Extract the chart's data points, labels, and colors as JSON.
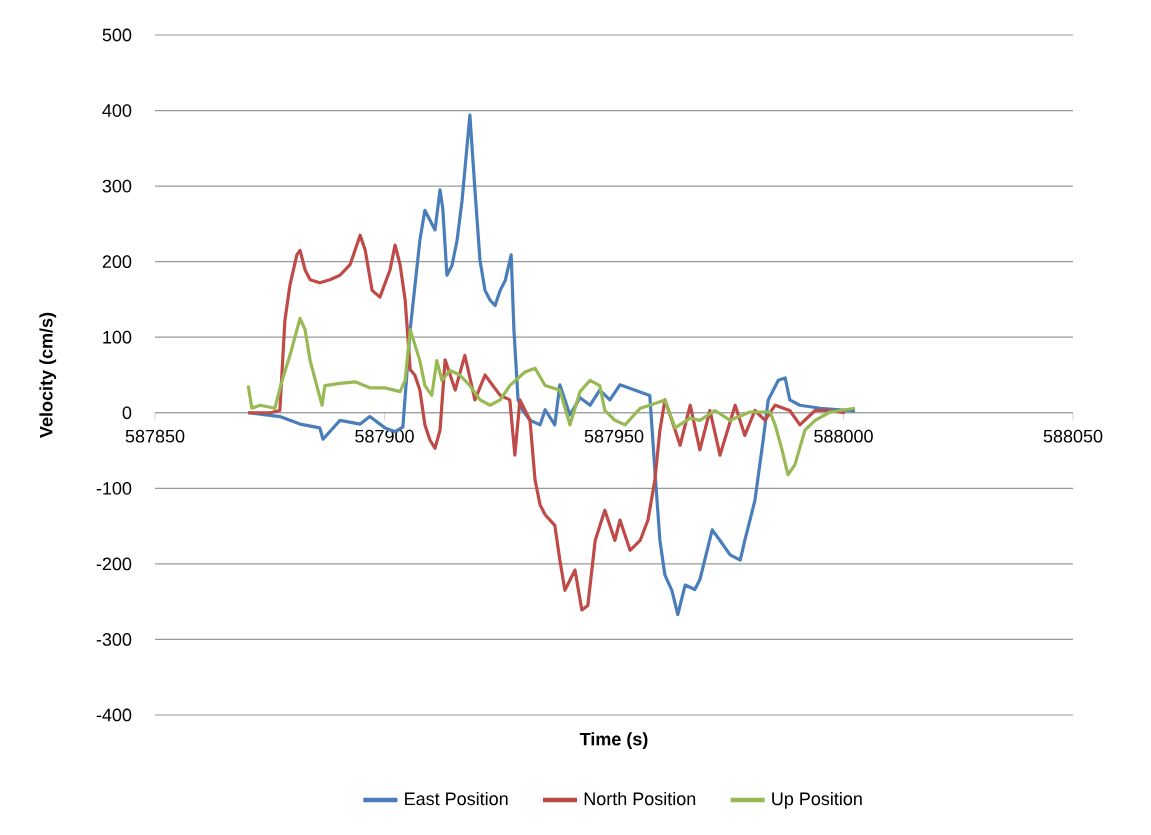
{
  "chart_data": {
    "type": "line",
    "xlabel": "Time (s)",
    "ylabel": "Velocity (cm/s)",
    "xlim": [
      587850,
      588050
    ],
    "xticks": [
      587850,
      587900,
      587950,
      588000,
      588050
    ],
    "ylim": [
      -400,
      500
    ],
    "yticks": [
      -400,
      -300,
      -200,
      -100,
      0,
      100,
      200,
      300,
      400,
      500
    ],
    "grid": "y",
    "legend": "bottom",
    "marker": "none",
    "line_style": "solid",
    "series": [
      {
        "name": "East Position",
        "color": "#4a7ebb",
        "x": [
          587870.3,
          587877.2,
          587881.6,
          587885.9,
          587886.6,
          587890.3,
          587894.7,
          587896.8,
          587900.1,
          587902.3,
          587904.0,
          587905.6,
          587907.7,
          587908.8,
          587911.0,
          587912.1,
          587912.7,
          587913.6,
          587914.7,
          587915.8,
          587916.9,
          587918.6,
          587919.7,
          587920.8,
          587921.9,
          587923.0,
          587924.1,
          587925.2,
          587926.3,
          587927.6,
          587928.2,
          587929.1,
          587930.0,
          587931.7,
          587933.9,
          587935.0,
          587937.1,
          587938.2,
          587940.4,
          587942.6,
          587944.8,
          587946.9,
          587949.1,
          587951.3,
          587957.8,
          587958.9,
          587960.0,
          587961.1,
          587962.6,
          587963.9,
          587965.5,
          587967.6,
          587968.7,
          587971.4,
          587973.1,
          587975.3,
          587977.5,
          587978.5,
          587980.7,
          587982.5,
          587983.6,
          587985.8,
          587987.3,
          587988.3,
          587990.5,
          587994.9,
          587999.2,
          588002.5
        ],
        "values": [
          0,
          -5,
          -15,
          -20,
          -35,
          -10,
          -15,
          -5,
          -20,
          -25,
          -19,
          110,
          228,
          268,
          242,
          295,
          270,
          182,
          195,
          228,
          281,
          394,
          295,
          202,
          162,
          149,
          142,
          162,
          175,
          209,
          109,
          17,
          4,
          -10,
          -16,
          4,
          -16,
          37,
          -3,
          20,
          10,
          30,
          17,
          37,
          23,
          -76,
          -169,
          -215,
          -235,
          -267,
          -228,
          -234,
          -221,
          -155,
          -169,
          -188,
          -195,
          -169,
          -116,
          -36,
          17,
          43,
          46,
          17,
          10,
          6,
          4,
          2
        ]
      },
      {
        "name": "North Position",
        "color": "#be4b48",
        "x": [
          587870.3,
          587875.1,
          587877.2,
          587878.3,
          587879.4,
          587880.9,
          587881.6,
          587882.7,
          587883.8,
          587885.9,
          587888.1,
          587890.3,
          587892.5,
          587894.7,
          587895.8,
          587897.3,
          587899.0,
          587901.2,
          587902.3,
          587903.4,
          587904.5,
          587905.6,
          587906.6,
          587907.7,
          587908.8,
          587909.9,
          587911.0,
          587912.1,
          587913.2,
          587915.4,
          587917.5,
          587919.7,
          587921.9,
          587925.2,
          587927.3,
          587928.4,
          587929.5,
          587931.7,
          587932.8,
          587933.9,
          587935.0,
          587937.1,
          587938.2,
          587939.3,
          587941.5,
          587943.0,
          587944.3,
          587945.9,
          587948.0,
          587950.2,
          587951.3,
          587953.5,
          587955.7,
          587957.4,
          587958.9,
          587960.0,
          587961.1,
          587962.6,
          587964.4,
          587966.6,
          587968.7,
          587970.9,
          587973.1,
          587976.4,
          587978.5,
          587980.7,
          587982.9,
          587985.1,
          587988.3,
          587990.5,
          587993.8,
          587997.1,
          588000.3
        ],
        "values": [
          0,
          0,
          3,
          122,
          169,
          209,
          215,
          189,
          176,
          172,
          176,
          182,
          196,
          235,
          215,
          162,
          153,
          189,
          222,
          196,
          149,
          57,
          50,
          30,
          -16,
          -36,
          -47,
          -23,
          70,
          30,
          76,
          17,
          50,
          23,
          17,
          -56,
          17,
          -10,
          -89,
          -122,
          -135,
          -149,
          -195,
          -235,
          -208,
          -261,
          -255,
          -169,
          -129,
          -169,
          -142,
          -182,
          -169,
          -142,
          -89,
          -23,
          17,
          -10,
          -43,
          10,
          -49,
          3,
          -56,
          10,
          -30,
          3,
          -10,
          10,
          3,
          -16,
          3,
          3,
          0
        ]
      },
      {
        "name": "Up Position",
        "color": "#98b954",
        "x": [
          587870.3,
          587871.1,
          587872.9,
          587876.1,
          587877.7,
          587879.4,
          587881.6,
          587882.7,
          587883.8,
          587885.5,
          587886.4,
          587887.0,
          587890.3,
          587893.6,
          587896.8,
          587900.1,
          587903.4,
          587904.5,
          587905.6,
          587907.7,
          587908.8,
          587910.3,
          587911.4,
          587912.5,
          587914.3,
          587916.4,
          587918.6,
          587920.8,
          587923.0,
          587925.2,
          587927.3,
          587930.6,
          587932.8,
          587935.0,
          587938.2,
          587940.4,
          587942.6,
          587944.8,
          587946.9,
          587948.0,
          587950.2,
          587952.4,
          587955.7,
          587957.8,
          587961.1,
          587963.3,
          587966.6,
          587968.7,
          587972.0,
          587975.3,
          587979.6,
          587984.0,
          587985.1,
          587986.6,
          587987.9,
          587989.4,
          587991.6,
          587993.8,
          587997.1,
          588002.5
        ],
        "values": [
          36,
          6,
          10,
          6,
          43,
          76,
          125,
          110,
          69,
          30,
          10,
          36,
          39,
          41,
          33,
          33,
          28,
          43,
          110,
          69,
          36,
          23,
          69,
          43,
          56,
          50,
          36,
          17,
          10,
          17,
          36,
          54,
          59,
          36,
          30,
          -16,
          28,
          43,
          36,
          3,
          -10,
          -16,
          6,
          10,
          17,
          -20,
          -7,
          -10,
          3,
          -10,
          1,
          1,
          -16,
          -49,
          -82,
          -69,
          -23,
          -10,
          1,
          6
        ]
      }
    ]
  }
}
